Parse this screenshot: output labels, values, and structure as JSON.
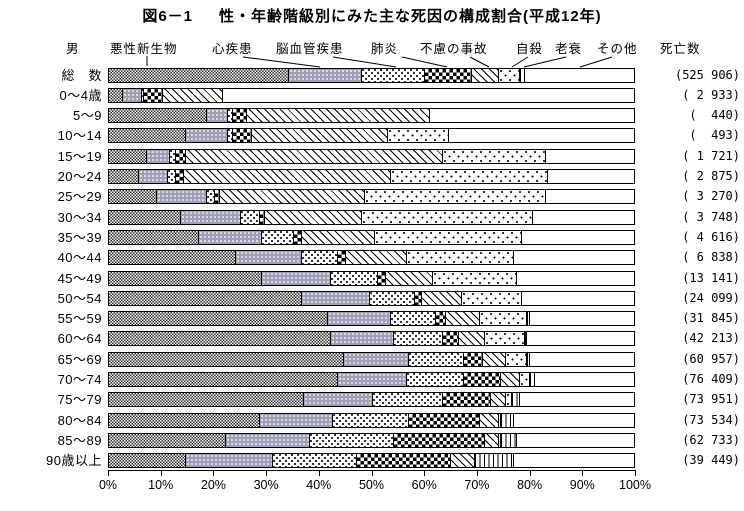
{
  "title": {
    "prefix": "図6－1",
    "main": "性・年齢階級別にみた主な死因の構成割合(平成12年)"
  },
  "sex_label": "男",
  "deaths_header": "死亡数",
  "colors": {
    "bar_border": "#000000",
    "heart_disease_gray": "#9f9fb6",
    "background": "#ffffff",
    "text": "#000000"
  },
  "chart_data": {
    "type": "bar",
    "variant": "horizontal-stacked-100pct",
    "title": "図6－1 性・年齢階級別にみた主な死因の構成割合(平成12年)",
    "xlabel": "構成割合",
    "xlim": [
      0,
      100
    ],
    "grid": false,
    "legend_position": "top",
    "x_ticks": [
      "0%",
      "10%",
      "20%",
      "30%",
      "40%",
      "50%",
      "60%",
      "70%",
      "80%",
      "90%",
      "100%"
    ],
    "series_names": [
      "悪性新生物",
      "心疾患",
      "脳血管疾患",
      "肺炎",
      "不慮の事故",
      "自殺",
      "老衰",
      "その他"
    ],
    "pattern_styles": [
      "fine-checker",
      "gray-stipple",
      "polka-dot",
      "checkerboard",
      "diagonal-hatch",
      "sparse-dot",
      "vertical-stripes",
      "plain-white"
    ],
    "deaths_column_header": "死亡数",
    "rows": [
      {
        "age": "総　数",
        "deaths": "(525 906)",
        "values": [
          34,
          14,
          12,
          9,
          5,
          4,
          1,
          21
        ]
      },
      {
        "age": "0～4歳",
        "deaths": "( 2 933)",
        "values": [
          2.5,
          3.5,
          0.5,
          3.5,
          11.5,
          0,
          0,
          78.5
        ]
      },
      {
        "age": "5～9",
        "deaths": "(  440)",
        "values": [
          18.5,
          4,
          1,
          2.5,
          35,
          0,
          0,
          39
        ]
      },
      {
        "age": "10～14",
        "deaths": "(  493)",
        "values": [
          14.5,
          8,
          1,
          3.5,
          26,
          11.5,
          0,
          35.5
        ]
      },
      {
        "age": "15～19",
        "deaths": "( 1 721)",
        "values": [
          7,
          4.5,
          1,
          2,
          49,
          19.5,
          0,
          17
        ]
      },
      {
        "age": "20～24",
        "deaths": "( 2 875)",
        "values": [
          5.5,
          5.5,
          1.5,
          1.5,
          39.5,
          30,
          0,
          16.5
        ]
      },
      {
        "age": "25～29",
        "deaths": "( 3 270)",
        "values": [
          9,
          9.5,
          1.5,
          1,
          27.5,
          34.5,
          0,
          17
        ]
      },
      {
        "age": "30～34",
        "deaths": "( 3 748)",
        "values": [
          13.5,
          11.5,
          3.5,
          1,
          18.5,
          32.5,
          0,
          19.5
        ]
      },
      {
        "age": "35～39",
        "deaths": "( 4 616)",
        "values": [
          17,
          12,
          6,
          1.5,
          14,
          28,
          0,
          21.5
        ]
      },
      {
        "age": "40～44",
        "deaths": "( 6 838)",
        "values": [
          24,
          12.5,
          7,
          1.5,
          11.5,
          20.5,
          0,
          23
        ]
      },
      {
        "age": "45～49",
        "deaths": "(13 141)",
        "values": [
          29,
          13,
          9,
          1.5,
          9,
          16,
          0,
          22.5
        ]
      },
      {
        "age": "50～54",
        "deaths": "(24 099)",
        "values": [
          36.5,
          13,
          8.5,
          1.5,
          7.5,
          11.5,
          0,
          21.5
        ]
      },
      {
        "age": "55～59",
        "deaths": "(31 845)",
        "values": [
          41.5,
          12,
          8.5,
          2,
          6.5,
          9,
          0.5,
          20
        ]
      },
      {
        "age": "60～64",
        "deaths": "(42 213)",
        "values": [
          42,
          12,
          9.5,
          3,
          5,
          7.5,
          0.5,
          20.5
        ]
      },
      {
        "age": "65～69",
        "deaths": "(60 957)",
        "values": [
          44.5,
          12.5,
          10.5,
          3.5,
          4.5,
          4,
          0.5,
          20
        ]
      },
      {
        "age": "70～74",
        "deaths": "(76 409)",
        "values": [
          43.5,
          13,
          11,
          7,
          3.5,
          2,
          1,
          19
        ]
      },
      {
        "age": "75～79",
        "deaths": "(73 951)",
        "values": [
          37,
          13,
          13.5,
          9,
          3,
          1,
          1.5,
          22
        ]
      },
      {
        "age": "80～84",
        "deaths": "(73 534)",
        "values": [
          28.5,
          14,
          14.5,
          13.5,
          3.5,
          0.5,
          2.5,
          23
        ]
      },
      {
        "age": "85～89",
        "deaths": "(62 733)",
        "values": [
          22,
          16,
          16,
          17.5,
          2.5,
          0.5,
          3,
          22.5
        ]
      },
      {
        "age": "90歳以上",
        "deaths": "(39 449)",
        "values": [
          14.5,
          16.5,
          16,
          18,
          4.5,
          0,
          7.5,
          23
        ]
      }
    ]
  }
}
